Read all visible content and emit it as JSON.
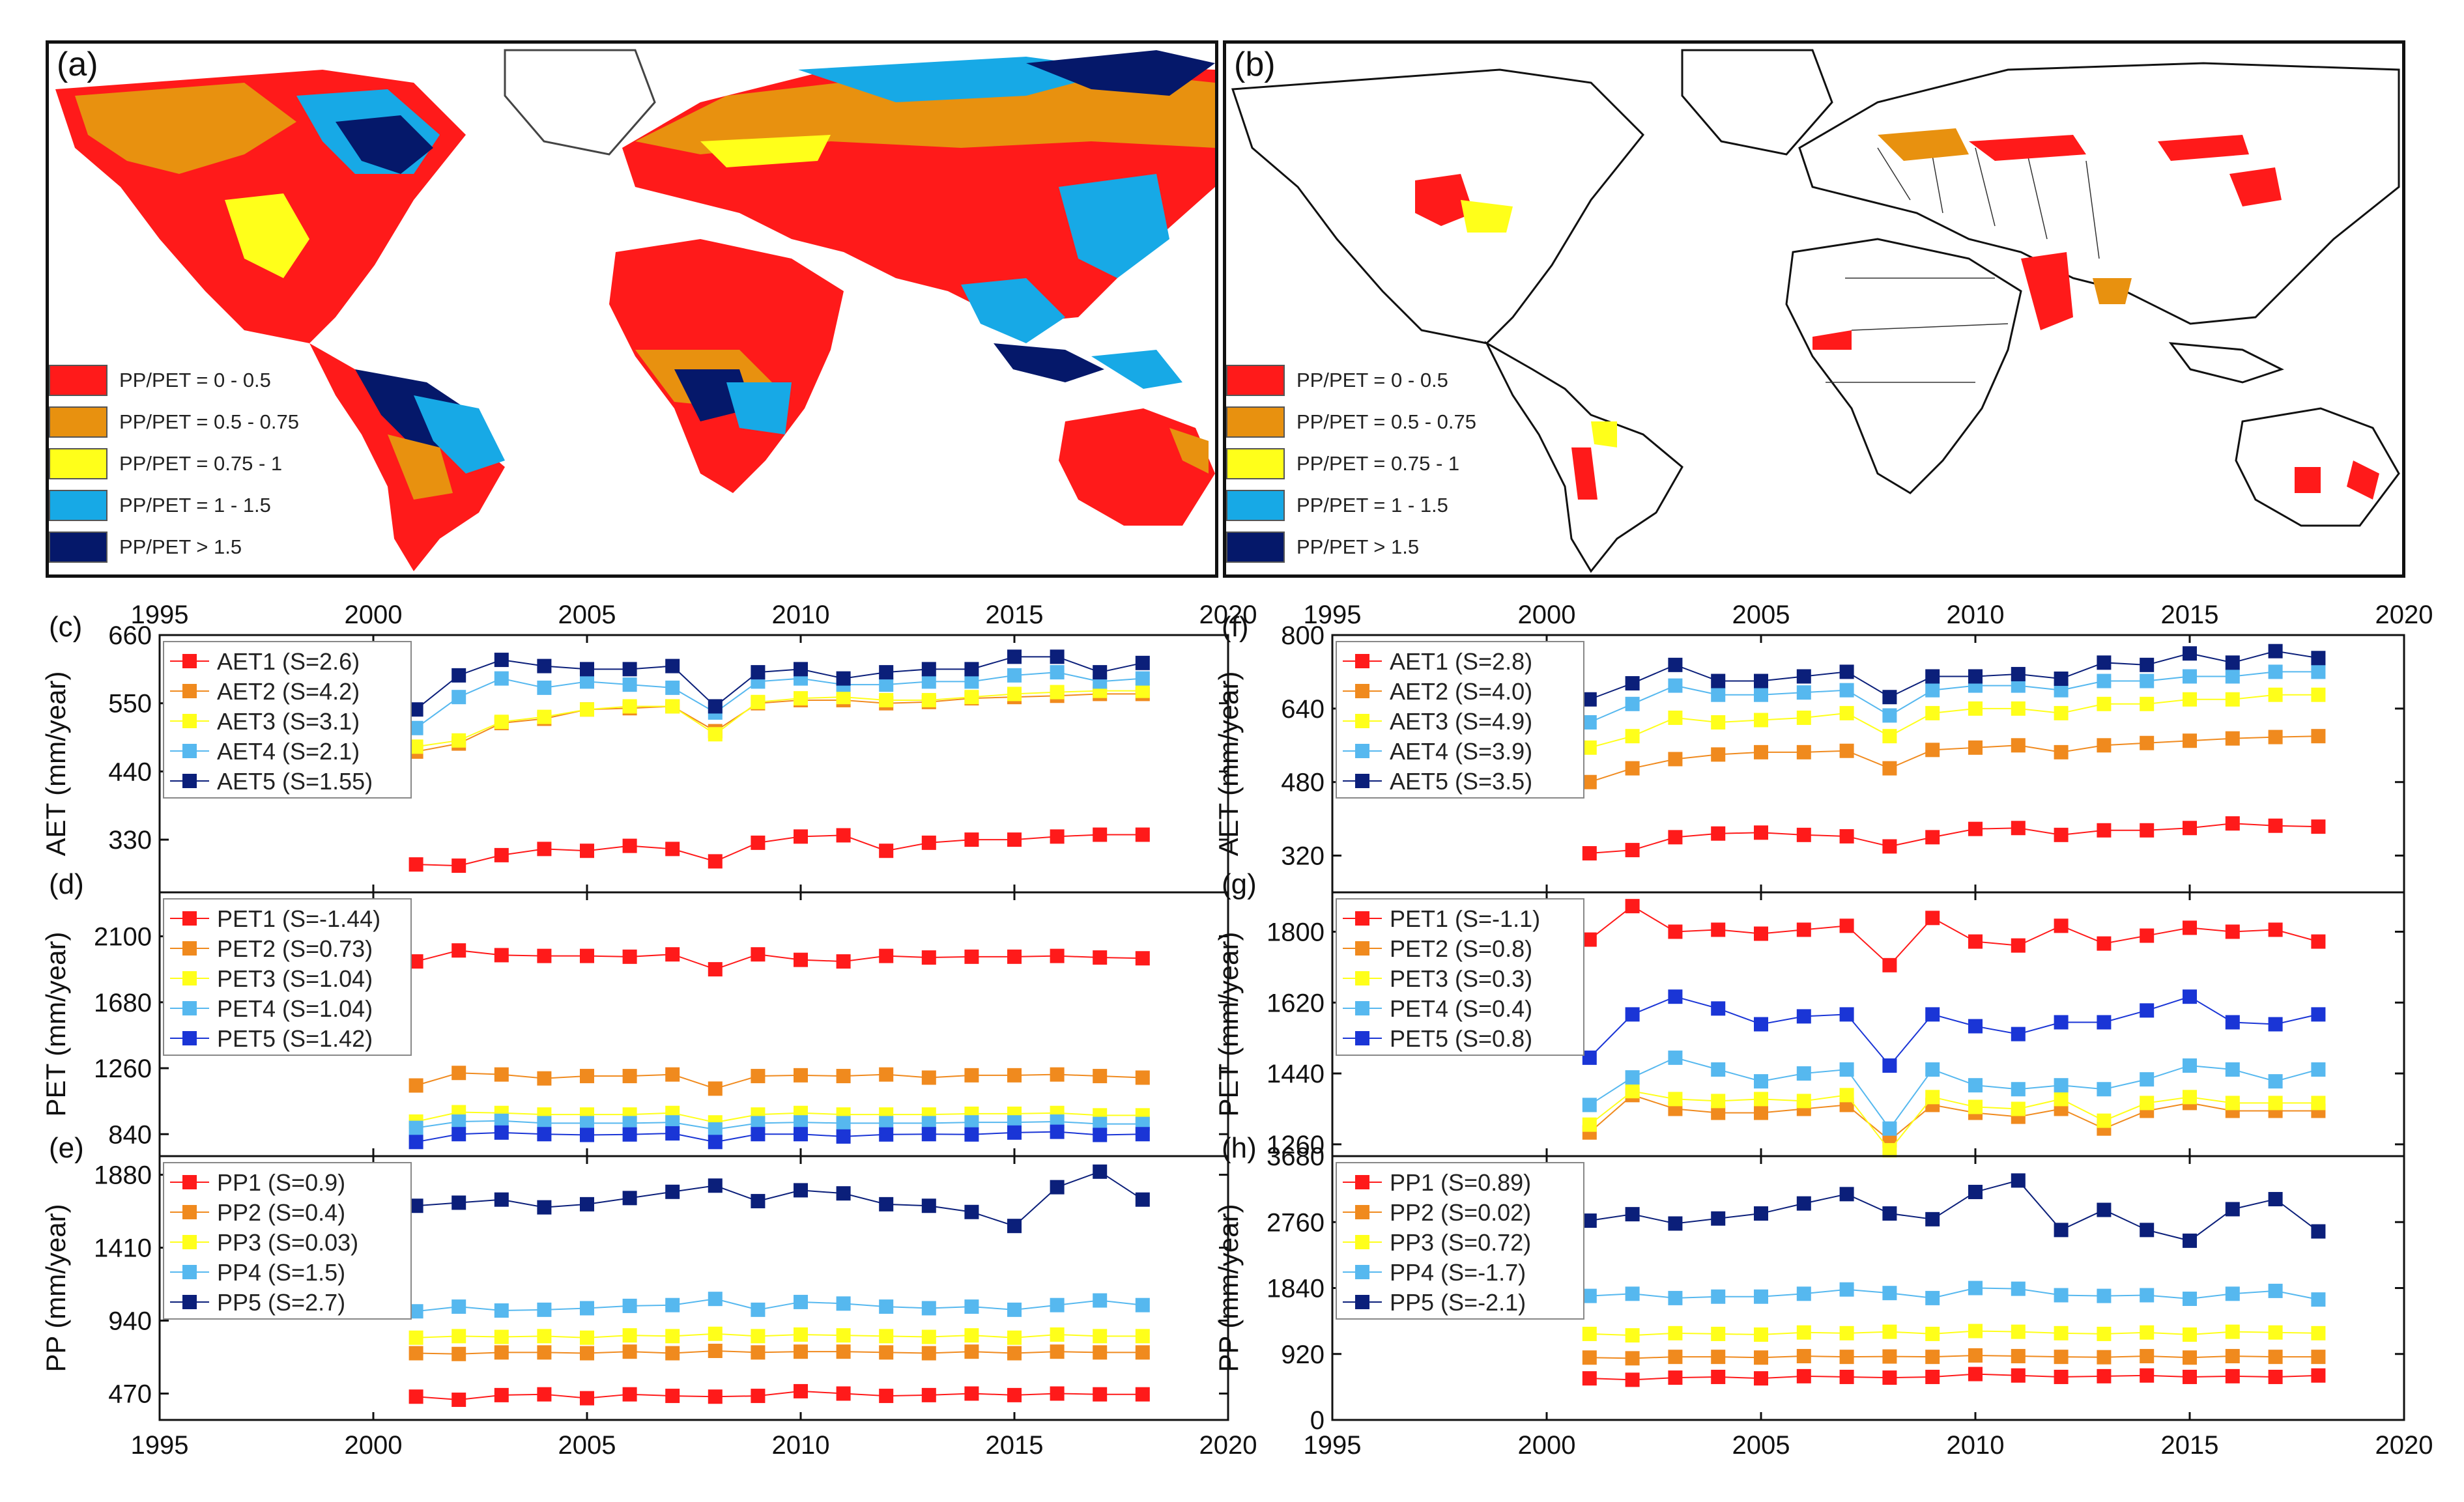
{
  "figure": {
    "map_a": {
      "letter": "(a)"
    },
    "map_b": {
      "letter": "(b)"
    },
    "legend": [
      {
        "label": "PP/PET = 0 - 0.5",
        "color": "#ff1a1a"
      },
      {
        "label": "PP/PET = 0.5 - 0.75",
        "color": "#e8910f"
      },
      {
        "label": "PP/PET = 0.75 - 1",
        "color": "#ffff1a"
      },
      {
        "label": "PP/PET = 1 - 1.5",
        "color": "#17a9e6"
      },
      {
        "label": "PP/PET > 1.5",
        "color": "#05186a"
      }
    ]
  },
  "chart_data": [
    {
      "id": "c",
      "letter": "(c)",
      "type": "line",
      "ylabel": "AET (mm/year)",
      "xlim": [
        1995,
        2020
      ],
      "ylim": [
        245,
        660
      ],
      "xticks": [
        1995,
        2000,
        2005,
        2010,
        2015,
        2020
      ],
      "yticks": [
        330,
        440,
        550,
        660
      ],
      "x_labels": "top",
      "x": [
        2001,
        2002,
        2003,
        2004,
        2005,
        2006,
        2007,
        2008,
        2009,
        2010,
        2011,
        2012,
        2013,
        2014,
        2015,
        2016,
        2017,
        2018
      ],
      "series": [
        {
          "name": "AET1 (S=2.6)",
          "color": "#ff1a1a",
          "values": [
            290,
            288,
            305,
            315,
            312,
            320,
            315,
            295,
            325,
            335,
            337,
            312,
            325,
            330,
            330,
            335,
            338,
            338
          ]
        },
        {
          "name": "AET2 (S=4.2)",
          "color": "#f08a1e",
          "values": [
            472,
            485,
            518,
            525,
            540,
            542,
            545,
            505,
            550,
            555,
            555,
            550,
            552,
            558,
            560,
            562,
            565,
            565
          ]
        },
        {
          "name": "AET3 (S=3.1)",
          "color": "#ffff1a",
          "values": [
            480,
            490,
            520,
            528,
            540,
            545,
            545,
            500,
            552,
            558,
            560,
            555,
            555,
            560,
            565,
            568,
            570,
            570
          ]
        },
        {
          "name": "AET4 (S=2.1)",
          "color": "#56b8ef",
          "values": [
            510,
            560,
            590,
            575,
            585,
            580,
            575,
            535,
            585,
            590,
            580,
            580,
            585,
            585,
            595,
            600,
            585,
            590
          ]
        },
        {
          "name": "AET5 (S=1.55)",
          "color": "#0b1f7a",
          "values": [
            540,
            595,
            620,
            610,
            605,
            605,
            610,
            545,
            600,
            605,
            590,
            600,
            605,
            605,
            625,
            625,
            600,
            615
          ]
        }
      ]
    },
    {
      "id": "d",
      "letter": "(d)",
      "type": "line",
      "ylabel": "PET (mm/year)",
      "xlim": [
        1995,
        2020
      ],
      "ylim": [
        700,
        2380
      ],
      "xticks": [
        1995,
        2000,
        2005,
        2010,
        2015,
        2020
      ],
      "yticks": [
        840,
        1260,
        1680,
        2100
      ],
      "x_labels": "none",
      "x": [
        2001,
        2002,
        2003,
        2004,
        2005,
        2006,
        2007,
        2008,
        2009,
        2010,
        2011,
        2012,
        2013,
        2014,
        2015,
        2016,
        2017,
        2018
      ],
      "series": [
        {
          "name": "PET1 (S=-1.44)",
          "color": "#ff1a1a",
          "values": [
            1940,
            2010,
            1980,
            1975,
            1975,
            1970,
            1985,
            1890,
            1985,
            1950,
            1940,
            1975,
            1965,
            1970,
            1970,
            1975,
            1965,
            1960
          ]
        },
        {
          "name": "PET2 (S=0.73)",
          "color": "#f08a1e",
          "values": [
            1150,
            1230,
            1220,
            1195,
            1210,
            1210,
            1220,
            1130,
            1210,
            1215,
            1210,
            1220,
            1200,
            1215,
            1215,
            1220,
            1210,
            1200
          ]
        },
        {
          "name": "PET3 (S=1.04)",
          "color": "#ffff1a",
          "values": [
            920,
            980,
            975,
            965,
            965,
            965,
            975,
            915,
            965,
            975,
            965,
            965,
            965,
            970,
            970,
            975,
            960,
            960
          ]
        },
        {
          "name": "PET4 (S=1.04)",
          "color": "#56b8ef",
          "values": [
            880,
            920,
            925,
            910,
            910,
            910,
            915,
            870,
            910,
            915,
            910,
            910,
            910,
            915,
            915,
            920,
            905,
            905
          ]
        },
        {
          "name": "PET5 (S=1.42)",
          "color": "#1a35d6",
          "values": [
            790,
            840,
            850,
            840,
            835,
            838,
            845,
            790,
            840,
            840,
            825,
            838,
            840,
            838,
            850,
            855,
            835,
            840
          ]
        }
      ]
    },
    {
      "id": "e",
      "letter": "(e)",
      "type": "line",
      "ylabel": "PP (mm/year)",
      "xlim": [
        1995,
        2020
      ],
      "ylim": [
        300,
        2000
      ],
      "xticks": [
        1995,
        2000,
        2005,
        2010,
        2015,
        2020
      ],
      "yticks": [
        470,
        940,
        1410,
        1880
      ],
      "x_labels": "bottom",
      "x": [
        2001,
        2002,
        2003,
        2004,
        2005,
        2006,
        2007,
        2008,
        2009,
        2010,
        2011,
        2012,
        2013,
        2014,
        2015,
        2016,
        2017,
        2018
      ],
      "series": [
        {
          "name": "PP1 (S=0.9)",
          "color": "#ff1a1a",
          "values": [
            450,
            430,
            460,
            465,
            440,
            465,
            455,
            450,
            455,
            485,
            470,
            455,
            460,
            470,
            460,
            470,
            465,
            465
          ]
        },
        {
          "name": "PP2 (S=0.4)",
          "color": "#f08a1e",
          "values": [
            730,
            725,
            735,
            735,
            730,
            740,
            730,
            745,
            735,
            740,
            740,
            735,
            730,
            740,
            730,
            740,
            735,
            735
          ]
        },
        {
          "name": "PP3 (S=0.03)",
          "color": "#ffff1a",
          "values": [
            830,
            840,
            835,
            840,
            830,
            845,
            840,
            855,
            840,
            850,
            845,
            840,
            835,
            845,
            830,
            850,
            840,
            840
          ]
        },
        {
          "name": "PP4 (S=1.5)",
          "color": "#56b8ef",
          "values": [
            1000,
            1030,
            1005,
            1010,
            1020,
            1035,
            1040,
            1080,
            1010,
            1060,
            1050,
            1030,
            1020,
            1030,
            1010,
            1040,
            1070,
            1040
          ]
        },
        {
          "name": "PP5 (S=2.7)",
          "color": "#0b1f7a",
          "values": [
            1680,
            1700,
            1720,
            1670,
            1690,
            1730,
            1770,
            1810,
            1710,
            1780,
            1760,
            1690,
            1680,
            1640,
            1550,
            1800,
            1900,
            1720
          ]
        }
      ]
    },
    {
      "id": "f",
      "letter": "(f)",
      "type": "line",
      "ylabel": "AET (mm/year)",
      "xlim": [
        1995,
        2020
      ],
      "ylim": [
        240,
        800
      ],
      "xticks": [
        1995,
        2000,
        2005,
        2010,
        2015,
        2020
      ],
      "yticks": [
        320,
        480,
        640,
        800
      ],
      "x_labels": "top",
      "x": [
        2001,
        2002,
        2003,
        2004,
        2005,
        2006,
        2007,
        2008,
        2009,
        2010,
        2011,
        2012,
        2013,
        2014,
        2015,
        2016,
        2017,
        2018
      ],
      "series": [
        {
          "name": "AET1 (S=2.8)",
          "color": "#ff1a1a",
          "values": [
            325,
            332,
            360,
            368,
            370,
            365,
            362,
            340,
            360,
            378,
            380,
            365,
            375,
            375,
            380,
            390,
            385,
            383
          ]
        },
        {
          "name": "AET2 (S=4.0)",
          "color": "#f08a1e",
          "values": [
            480,
            510,
            530,
            540,
            545,
            545,
            548,
            510,
            550,
            555,
            560,
            545,
            560,
            565,
            570,
            575,
            578,
            580
          ]
        },
        {
          "name": "AET3 (S=4.9)",
          "color": "#ffff1a",
          "values": [
            555,
            580,
            620,
            610,
            615,
            620,
            630,
            580,
            630,
            640,
            640,
            630,
            650,
            650,
            660,
            660,
            670,
            670
          ]
        },
        {
          "name": "AET4 (S=3.9)",
          "color": "#56b8ef",
          "values": [
            610,
            650,
            690,
            670,
            670,
            675,
            680,
            625,
            680,
            690,
            690,
            680,
            700,
            700,
            710,
            710,
            720,
            720
          ]
        },
        {
          "name": "AET5 (S=3.5)",
          "color": "#0b1f7a",
          "values": [
            660,
            695,
            735,
            700,
            700,
            710,
            720,
            665,
            710,
            710,
            715,
            705,
            740,
            735,
            760,
            740,
            765,
            750
          ]
        }
      ]
    },
    {
      "id": "g",
      "letter": "(g)",
      "type": "line",
      "ylabel": "PET (mm/year)",
      "xlim": [
        1995,
        2020
      ],
      "ylim": [
        1230,
        1900
      ],
      "xticks": [
        1995,
        2000,
        2005,
        2010,
        2015,
        2020
      ],
      "yticks": [
        1260,
        1440,
        1620,
        1800
      ],
      "x_labels": "none",
      "x": [
        2001,
        2002,
        2003,
        2004,
        2005,
        2006,
        2007,
        2008,
        2009,
        2010,
        2011,
        2012,
        2013,
        2014,
        2015,
        2016,
        2017,
        2018
      ],
      "series": [
        {
          "name": "PET1 (S=-1.1)",
          "color": "#ff1a1a",
          "values": [
            1780,
            1865,
            1800,
            1805,
            1795,
            1805,
            1815,
            1715,
            1835,
            1775,
            1765,
            1815,
            1770,
            1790,
            1810,
            1800,
            1805,
            1775
          ]
        },
        {
          "name": "PET2 (S=0.8)",
          "color": "#f08a1e",
          "values": [
            1290,
            1385,
            1350,
            1340,
            1340,
            1350,
            1360,
            1270,
            1360,
            1340,
            1330,
            1350,
            1300,
            1345,
            1365,
            1345,
            1345,
            1345
          ]
        },
        {
          "name": "PET3 (S=0.3)",
          "color": "#ffff1a",
          "values": [
            1310,
            1395,
            1375,
            1370,
            1375,
            1370,
            1385,
            1245,
            1380,
            1355,
            1350,
            1375,
            1320,
            1365,
            1380,
            1365,
            1365,
            1365
          ]
        },
        {
          "name": "PET4 (S=0.4)",
          "color": "#56b8ef",
          "values": [
            1360,
            1430,
            1480,
            1450,
            1420,
            1440,
            1450,
            1300,
            1450,
            1410,
            1400,
            1410,
            1400,
            1425,
            1460,
            1450,
            1420,
            1450
          ]
        },
        {
          "name": "PET5 (S=0.8)",
          "color": "#1a35d6",
          "values": [
            1480,
            1590,
            1635,
            1605,
            1565,
            1585,
            1590,
            1460,
            1590,
            1560,
            1540,
            1570,
            1570,
            1600,
            1635,
            1570,
            1565,
            1590
          ]
        }
      ]
    },
    {
      "id": "h",
      "letter": "(h)",
      "type": "line",
      "ylabel": "PP (mm/year)",
      "xlim": [
        1995,
        2020
      ],
      "ylim": [
        0,
        3680
      ],
      "xticks": [
        1995,
        2000,
        2005,
        2010,
        2015,
        2020
      ],
      "yticks": [
        0,
        920,
        1840,
        2760,
        3680
      ],
      "x_labels": "bottom",
      "x": [
        2001,
        2002,
        2003,
        2004,
        2005,
        2006,
        2007,
        2008,
        2009,
        2010,
        2011,
        2012,
        2013,
        2014,
        2015,
        2016,
        2017,
        2018
      ],
      "series": [
        {
          "name": "PP1 (S=0.89)",
          "color": "#ff1a1a",
          "values": [
            580,
            560,
            590,
            600,
            580,
            610,
            600,
            590,
            600,
            640,
            620,
            600,
            610,
            620,
            600,
            610,
            600,
            620
          ]
        },
        {
          "name": "PP2 (S=0.02)",
          "color": "#f08a1e",
          "values": [
            870,
            860,
            880,
            880,
            870,
            890,
            880,
            885,
            880,
            900,
            890,
            880,
            875,
            890,
            870,
            890,
            880,
            880
          ]
        },
        {
          "name": "PP3 (S=0.72)",
          "color": "#ffff1a",
          "values": [
            1200,
            1180,
            1210,
            1200,
            1190,
            1220,
            1210,
            1230,
            1200,
            1240,
            1230,
            1210,
            1200,
            1220,
            1190,
            1230,
            1220,
            1210
          ]
        },
        {
          "name": "PP4 (S=-1.7)",
          "color": "#56b8ef",
          "values": [
            1730,
            1760,
            1700,
            1720,
            1720,
            1760,
            1820,
            1770,
            1700,
            1840,
            1830,
            1740,
            1730,
            1740,
            1690,
            1760,
            1800,
            1680
          ]
        },
        {
          "name": "PP5 (S=-2.1)",
          "color": "#0b1f7a",
          "values": [
            2780,
            2870,
            2740,
            2810,
            2880,
            3020,
            3150,
            2880,
            2800,
            3180,
            3340,
            2650,
            2930,
            2650,
            2500,
            2940,
            3080,
            2630
          ]
        }
      ]
    }
  ]
}
